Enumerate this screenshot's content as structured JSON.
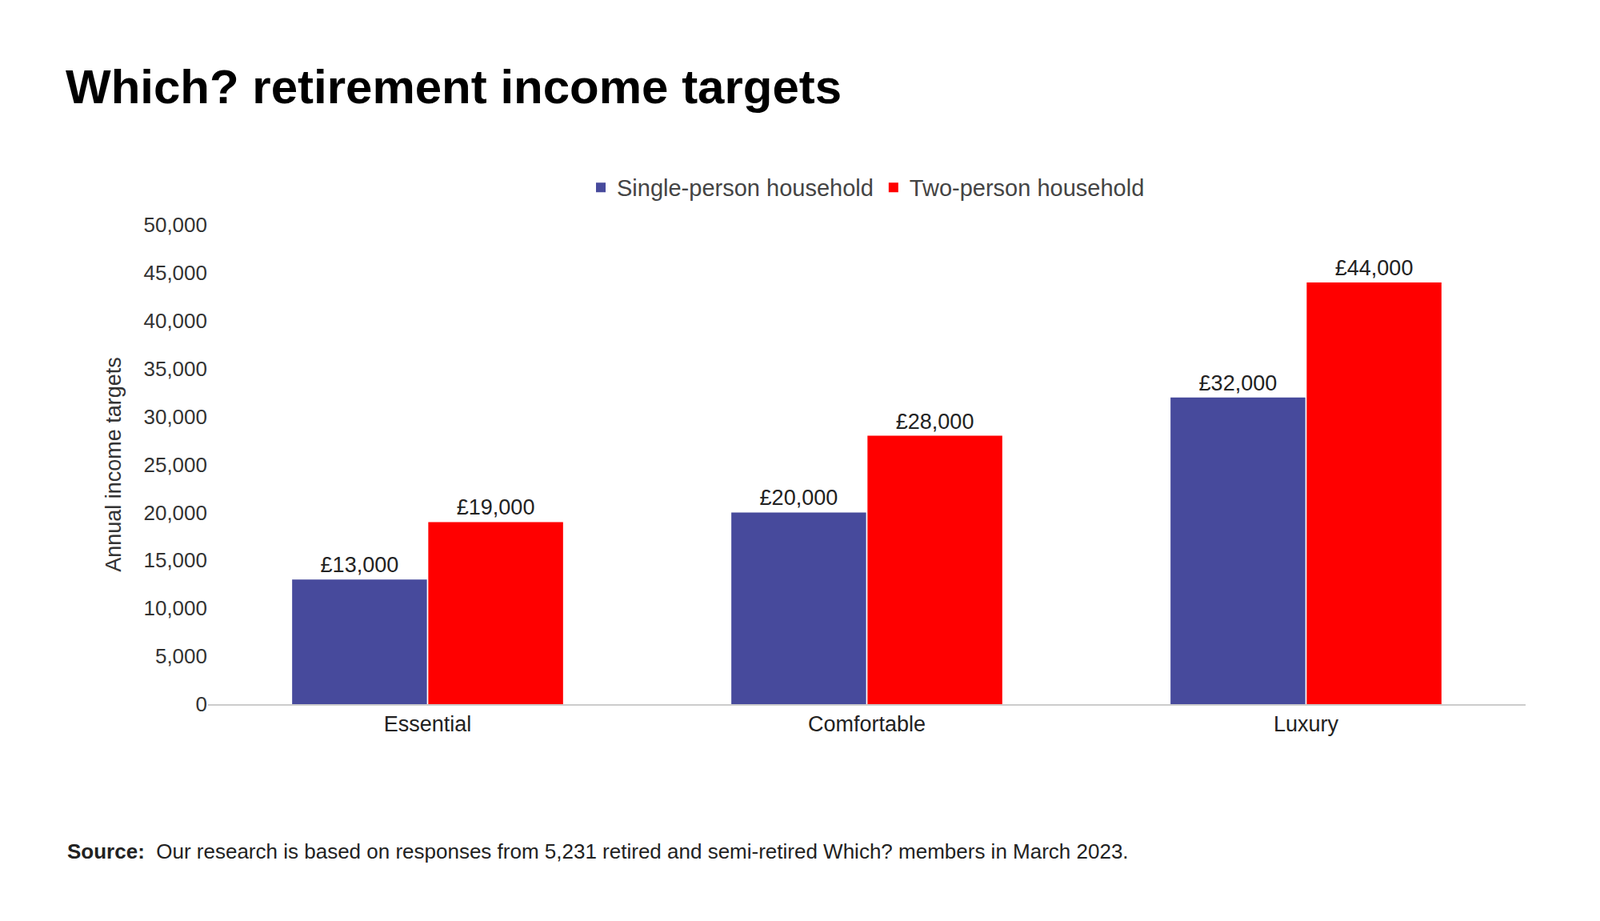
{
  "chart_data": {
    "type": "bar",
    "title": "Which? retirement income targets",
    "y_label": "Annual income targets",
    "categories": [
      "Essential",
      "Comfortable",
      "Luxury"
    ],
    "series": [
      {
        "name": "Single-person household",
        "color": "#474a9c",
        "values": [
          13000,
          20000,
          32000
        ],
        "value_labels": [
          "£13,000",
          "£20,000",
          "£32,000"
        ]
      },
      {
        "name": "Two-person household",
        "color": "#ff0000",
        "values": [
          19000,
          28000,
          44000
        ],
        "value_labels": [
          "£19,000",
          "£28,000",
          "£44,000"
        ]
      }
    ],
    "ylim": [
      0,
      50000
    ],
    "yticks": [
      0,
      {
        "value": 5000,
        "label": "5,000"
      },
      {
        "value": 10000,
        "label": "10,000"
      },
      {
        "value": 15000,
        "label": "15,000"
      },
      {
        "value": 20000,
        "label": "20,000"
      },
      {
        "value": 25000,
        "label": "25,000"
      },
      {
        "value": 30000,
        "label": "30,000"
      },
      {
        "value": 35000,
        "label": "35,000"
      },
      {
        "value": 40000,
        "label": "40,000"
      },
      {
        "value": 45000,
        "label": "45,000"
      },
      {
        "value": 50000,
        "label": "50,000"
      }
    ],
    "grid": false,
    "legend": "top",
    "data_labels": true,
    "source": {
      "label": "Source:",
      "text": "Our research is based on responses from 5,231 retired and semi-retired Which? members in March 2023."
    }
  }
}
